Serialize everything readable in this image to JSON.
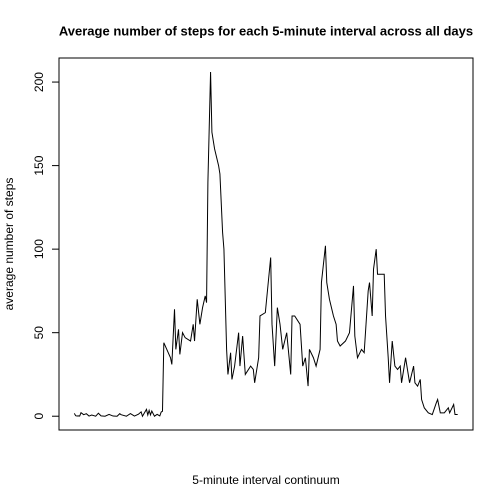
{
  "chart_data": {
    "type": "line",
    "title": "Average number of steps for each 5-minute interval across all days",
    "x_label": "5-minute interval continuum",
    "y_label": "average number of steps",
    "color": "#000000",
    "x": [
      1,
      2,
      3,
      4,
      5,
      6,
      8,
      10,
      12,
      14,
      17,
      19,
      21,
      24,
      27,
      30,
      33,
      35,
      36,
      40,
      43,
      46,
      49,
      51,
      52,
      55,
      56,
      57,
      58,
      59,
      61,
      63,
      65,
      66,
      67,
      68,
      73,
      74,
      76,
      77,
      79,
      80,
      82,
      84,
      88,
      90,
      91,
      93,
      95,
      97,
      99,
      100,
      101,
      103,
      104,
      106,
      109,
      110,
      112,
      113,
      115,
      116,
      118,
      119,
      121,
      124,
      125,
      127,
      129,
      133,
      135,
      136,
      139,
      140,
      144,
      148,
      149,
      151,
      153,
      155,
      157,
      160,
      163,
      164,
      166,
      170,
      172,
      174,
      176,
      177,
      180,
      182,
      185,
      186,
      189,
      190,
      192,
      195,
      197,
      198,
      200,
      204,
      207,
      210,
      211,
      213,
      216,
      218,
      221,
      222,
      224,
      225,
      227,
      228,
      233,
      234,
      236,
      237,
      239,
      241,
      243,
      245,
      246,
      249,
      251,
      252,
      255,
      256,
      258,
      260,
      261,
      263,
      266,
      269,
      272,
      273,
      275,
      278,
      281,
      282,
      285,
      286,
      288
    ],
    "values": [
      1.7,
      0.3,
      0.1,
      0.2,
      0.1,
      2.1,
      0.9,
      1.5,
      0.1,
      0.7,
      0,
      1.8,
      0.2,
      0,
      1.1,
      0.1,
      0,
      1.5,
      0.9,
      0,
      1.6,
      0.1,
      1.2,
      2.6,
      0,
      4.1,
      0.7,
      3.5,
      0.8,
      3.1,
      0,
      1.1,
      0.2,
      2.5,
      3,
      44,
      35,
      31,
      64,
      40,
      52,
      37,
      50,
      47,
      45,
      55,
      45,
      70,
      55,
      65,
      72,
      68,
      140,
      206,
      170,
      160,
      150,
      145,
      110,
      100,
      40,
      25,
      38,
      22,
      30,
      50,
      30,
      48,
      25,
      30,
      28,
      20,
      35,
      60,
      62,
      95,
      55,
      30,
      65,
      55,
      40,
      50,
      25,
      60,
      60,
      55,
      30,
      35,
      18,
      40,
      35,
      30,
      40,
      80,
      102,
      80,
      70,
      60,
      55,
      45,
      42,
      45,
      50,
      78,
      48,
      35,
      40,
      38,
      75,
      80,
      60,
      88,
      100,
      85,
      85,
      60,
      35,
      20,
      45,
      30,
      28,
      30,
      20,
      35,
      25,
      20,
      30,
      20,
      18,
      22,
      10,
      5,
      2,
      1,
      8,
      10,
      2,
      2,
      5,
      2,
      7,
      1,
      1
    ],
    "xlim": [
      -10.48,
      299.48
    ],
    "ylim": [
      -8.25,
      214.4
    ],
    "yticks": [
      0,
      50,
      100,
      150,
      200
    ]
  }
}
